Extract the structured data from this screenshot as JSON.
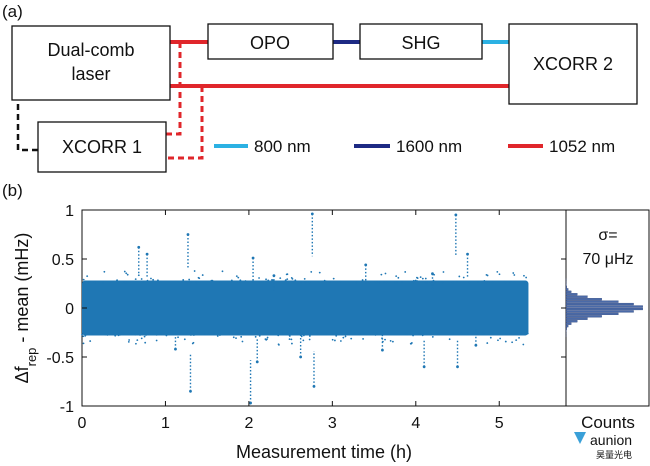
{
  "panel_a": {
    "label": "(a)",
    "blocks": {
      "laser": [
        "Dual-comb",
        "laser"
      ],
      "opo": "OPO",
      "shg": "SHG",
      "xcorr2": "XCORR 2",
      "xcorr1": "XCORR 1"
    },
    "legend": [
      {
        "label": "800 nm",
        "color": "#2bb1e3"
      },
      {
        "label": "1600 nm",
        "color": "#1d2a84"
      },
      {
        "label": "1052 nm",
        "color": "#e0262b"
      }
    ]
  },
  "panel_b": {
    "label": "(b)",
    "sigma_line1": "σ=",
    "sigma_line2": "70 μHz",
    "counts_label": "Counts",
    "watermark": "aunion",
    "watermark_sub": "昊量光电"
  },
  "chart_data": {
    "type": "scatter",
    "xlabel": "Measurement time (h)",
    "ylabel": "Δf_rep - mean (mHz)",
    "xlim": [
      0,
      5.8
    ],
    "ylim": [
      -1,
      1
    ],
    "xticks": [
      "0",
      "1",
      "2",
      "3",
      "4",
      "5"
    ],
    "yticks": [
      "-1",
      "-0.5",
      "0",
      "0.5",
      "1"
    ],
    "series_color": "#1f77b4",
    "dense_band": {
      "x_range": [
        0,
        5.35
      ],
      "y_range": [
        -0.28,
        0.28
      ]
    },
    "spikes": [
      {
        "x": 0.68,
        "y": 0.62
      },
      {
        "x": 0.78,
        "y": 0.55
      },
      {
        "x": 1.27,
        "y": 0.75
      },
      {
        "x": 1.3,
        "y": -0.85
      },
      {
        "x": 1.12,
        "y": -0.42
      },
      {
        "x": 2.02,
        "y": -0.97
      },
      {
        "x": 2.05,
        "y": 0.51
      },
      {
        "x": 2.1,
        "y": -0.55
      },
      {
        "x": 2.76,
        "y": 0.96
      },
      {
        "x": 2.78,
        "y": -0.8
      },
      {
        "x": 2.62,
        "y": -0.5
      },
      {
        "x": 3.6,
        "y": -0.43
      },
      {
        "x": 4.1,
        "y": -0.6
      },
      {
        "x": 4.48,
        "y": 0.95
      },
      {
        "x": 4.5,
        "y": -0.6
      },
      {
        "x": 4.62,
        "y": 0.55
      },
      {
        "x": 4.72,
        "y": -0.38
      },
      {
        "x": 2.3,
        "y": 0.33
      },
      {
        "x": 3.4,
        "y": 0.44
      },
      {
        "x": 4.2,
        "y": 0.35
      }
    ],
    "histogram": {
      "sigma": "70 μHz",
      "bins": 24
    }
  }
}
